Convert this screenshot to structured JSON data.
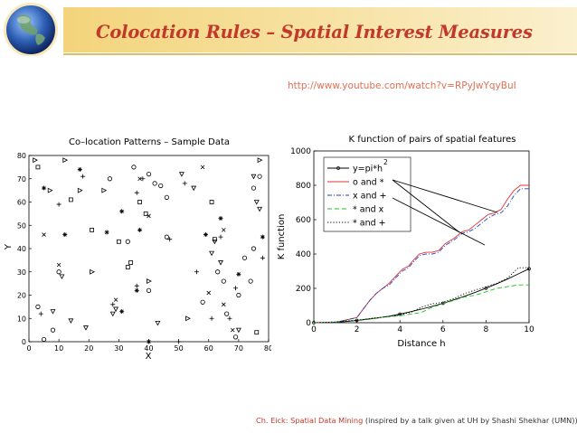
{
  "slide": {
    "title": "Colocation Rules – Spatial Interest Measures",
    "url": "http://www.youtube.com/watch?v=RPyJwYqyBuI",
    "footer": {
      "author": "Ch. Eick: Spatial Data Mining",
      "note": " (inspired by a talk given at UH by Shashi Shekhar (UMN))"
    },
    "globe_icon": "globe-icon",
    "colors": {
      "title": "#c0392b",
      "url": "#e07055",
      "banner": "#f1d27a",
      "banner_line": "#d4a83a"
    }
  },
  "chart_data": [
    {
      "type": "scatter",
      "title": "Co–location Patterns – Sample Data",
      "xlabel": "X",
      "ylabel": "Y",
      "xlim": [
        0,
        80
      ],
      "ylim": [
        0,
        80
      ],
      "xticks": [
        "0",
        "10",
        "20",
        "30",
        "40",
        "50",
        "60",
        "70",
        "80"
      ],
      "yticks": [
        "0",
        "10",
        "20",
        "30",
        "40",
        "50",
        "60",
        "70",
        "80"
      ],
      "grid": false,
      "series": [
        {
          "marker": "o",
          "points": [
            [
              3,
              15
            ],
            [
              5,
              1
            ],
            [
              8,
              5
            ],
            [
              10,
              30
            ],
            [
              27,
              70
            ],
            [
              33,
              43
            ],
            [
              35,
              75
            ],
            [
              40,
              72
            ],
            [
              40,
              22
            ],
            [
              46,
              45
            ],
            [
              58,
              17
            ],
            [
              63,
              30
            ],
            [
              65,
              26
            ],
            [
              66,
              12
            ],
            [
              69,
              2
            ],
            [
              70,
              20
            ],
            [
              72,
              36
            ],
            [
              75,
              40
            ],
            [
              74,
              26
            ],
            [
              75,
              66
            ],
            [
              77,
              71
            ],
            [
              42,
              68
            ],
            [
              44,
              67
            ],
            [
              46,
              62
            ]
          ]
        },
        {
          "marker": "s",
          "points": [
            [
              3,
              75
            ],
            [
              14,
              61
            ],
            [
              21,
              48
            ],
            [
              30,
              43
            ],
            [
              33,
              32
            ],
            [
              34,
              34
            ],
            [
              37,
              60
            ],
            [
              39,
              55
            ],
            [
              61,
              60
            ],
            [
              62,
              44
            ],
            [
              76,
              4
            ]
          ]
        },
        {
          "marker": "+",
          "points": [
            [
              4,
              12
            ],
            [
              10,
              59
            ],
            [
              18,
              71
            ],
            [
              28,
              16
            ],
            [
              36,
              24
            ],
            [
              36,
              64
            ],
            [
              38,
              70
            ],
            [
              47,
              44
            ],
            [
              52,
              68
            ],
            [
              50,
              0
            ],
            [
              61,
              10
            ],
            [
              64,
              45
            ],
            [
              67,
              10
            ],
            [
              69,
              23
            ],
            [
              78,
              36
            ],
            [
              56,
              30
            ]
          ]
        },
        {
          "marker": "x",
          "points": [
            [
              5,
              46
            ],
            [
              10,
              33
            ],
            [
              29,
              18
            ],
            [
              37,
              70
            ],
            [
              40,
              54
            ],
            [
              58,
              75
            ],
            [
              65,
              48
            ],
            [
              65,
              16
            ],
            [
              68,
              5
            ],
            [
              60,
              21
            ]
          ]
        },
        {
          "marker": ">",
          "points": [
            [
              2,
              78
            ],
            [
              7,
              65
            ],
            [
              12,
              78
            ],
            [
              17,
              65
            ],
            [
              21,
              30
            ],
            [
              25,
              65
            ],
            [
              40,
              26
            ],
            [
              53,
              10
            ],
            [
              77,
              78
            ]
          ]
        },
        {
          "marker": "*",
          "points": [
            [
              5,
              66
            ],
            [
              12,
              46
            ],
            [
              17,
              74
            ],
            [
              26,
              47
            ],
            [
              31,
              13
            ],
            [
              31,
              56
            ],
            [
              36,
              22
            ],
            [
              37,
              48
            ],
            [
              40,
              0
            ],
            [
              59,
              46
            ],
            [
              64,
              53
            ],
            [
              78,
              45
            ],
            [
              70,
              29
            ]
          ]
        },
        {
          "marker": "v",
          "points": [
            [
              8,
              13
            ],
            [
              11,
              28
            ],
            [
              14,
              9
            ],
            [
              19,
              6
            ],
            [
              28,
              12
            ],
            [
              29,
              14
            ],
            [
              43,
              8
            ],
            [
              51,
              72
            ],
            [
              55,
              66
            ],
            [
              61,
              38
            ],
            [
              62,
              43
            ],
            [
              75,
              71
            ],
            [
              76,
              60
            ],
            [
              77,
              57
            ],
            [
              64,
              34
            ],
            [
              70,
              5
            ]
          ]
        }
      ]
    },
    {
      "type": "line",
      "title": "K function of pairs of spatial features",
      "xlabel": "Distance h",
      "ylabel": "K function",
      "xlim": [
        0,
        10
      ],
      "ylim": [
        0,
        1000
      ],
      "xticks": [
        "0",
        "2",
        "4",
        "6",
        "8",
        "10"
      ],
      "yticks": [
        "0",
        "200",
        "400",
        "600",
        "800",
        "1000"
      ],
      "legend": {
        "placement": "top-left",
        "entries": [
          "y=pi*h",
          "o and *",
          "x and +",
          "* and x",
          "* and +"
        ],
        "superscript": "2"
      },
      "series": [
        {
          "name": "y=pi*h",
          "color": "#000000",
          "dash": "solid",
          "marker": "*",
          "x": [
            0,
            0.5,
            1,
            1.5,
            2,
            2.5,
            3,
            3.5,
            4,
            4.5,
            5,
            5.5,
            6,
            6.5,
            7,
            7.5,
            8,
            8.5,
            9,
            9.5,
            10
          ],
          "values": [
            0,
            1,
            3,
            7,
            13,
            20,
            28,
            38,
            50,
            64,
            79,
            95,
            113,
            133,
            154,
            177,
            201,
            227,
            254,
            284,
            314
          ]
        },
        {
          "name": "o and *",
          "color": "#e03030",
          "dash": "solid",
          "x": [
            0,
            1,
            1.3,
            2,
            2.3,
            2.6,
            2.9,
            3.2,
            3.5,
            3.8,
            4.1,
            4.4,
            4.6,
            4.9,
            5.2,
            5.5,
            5.8,
            6.1,
            6.5,
            6.9,
            7.2,
            7.5,
            7.8,
            8.1,
            8.4,
            8.7,
            9,
            9.3,
            9.6,
            10
          ],
          "values": [
            0,
            2,
            10,
            30,
            80,
            130,
            170,
            200,
            230,
            270,
            310,
            330,
            360,
            400,
            410,
            410,
            420,
            460,
            490,
            530,
            540,
            570,
            600,
            630,
            640,
            660,
            720,
            770,
            800,
            800
          ]
        },
        {
          "name": "x and +",
          "color": "#2040c0",
          "dash": "dashdot",
          "x": [
            0,
            1,
            1.3,
            2,
            2.3,
            2.6,
            2.9,
            3.2,
            3.5,
            3.8,
            4.1,
            4.4,
            4.6,
            4.9,
            5.2,
            5.5,
            5.8,
            6.1,
            6.5,
            6.9,
            7.2,
            7.5,
            7.8,
            8.1,
            8.4,
            8.7,
            9,
            9.3,
            9.6,
            10
          ],
          "values": [
            0,
            2,
            10,
            30,
            80,
            130,
            170,
            200,
            220,
            260,
            300,
            320,
            350,
            390,
            400,
            400,
            410,
            450,
            480,
            520,
            530,
            550,
            580,
            610,
            630,
            640,
            680,
            740,
            780,
            780
          ]
        },
        {
          "name": "* and x",
          "color": "#20c020",
          "dash": "dash",
          "x": [
            0,
            1,
            2,
            3,
            4,
            5,
            5.5,
            6,
            6.5,
            7,
            7.5,
            8,
            8.5,
            9,
            9.5,
            10
          ],
          "values": [
            0,
            5,
            15,
            30,
            40,
            60,
            90,
            110,
            130,
            150,
            160,
            180,
            200,
            210,
            220,
            220
          ]
        },
        {
          "name": "* and +",
          "color": "#000000",
          "dash": "dot",
          "x": [
            0,
            1,
            2,
            3,
            4,
            4.5,
            5,
            5.5,
            6,
            6.5,
            7,
            7.5,
            8,
            8.5,
            9,
            9.5,
            10
          ],
          "values": [
            0,
            5,
            15,
            30,
            45,
            60,
            90,
            110,
            120,
            140,
            170,
            190,
            210,
            230,
            260,
            320,
            320
          ]
        }
      ]
    }
  ]
}
